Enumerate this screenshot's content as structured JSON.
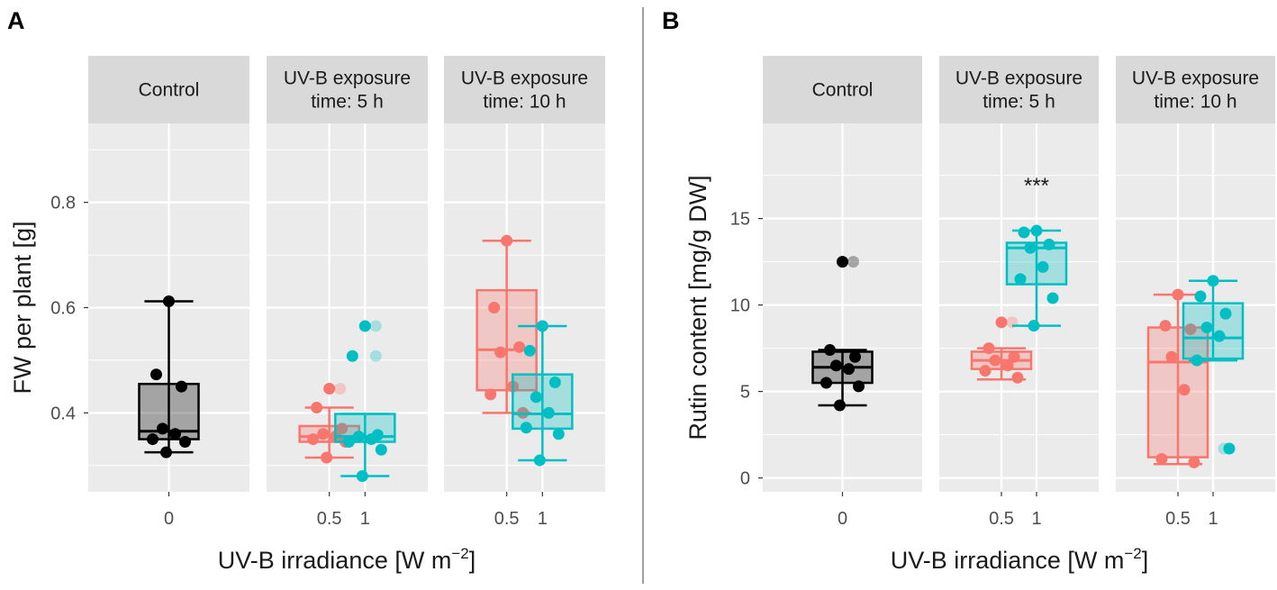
{
  "colors": {
    "control": "#000000",
    "low": "#f8766d",
    "high": "#00bfc4",
    "panel_bg": "#ebebeb",
    "strip_bg": "#d9d9d9",
    "grid": "#ffffff",
    "divider": "#7f7f7f"
  },
  "chart_data": [
    {
      "type": "box",
      "panel_label": "A",
      "ylabel": "FW per plant [g]",
      "xlabel_main": "UV-B irradiance [W m",
      "xlabel_sup": "−2",
      "xlabel_end": "]",
      "ylim": [
        0.25,
        0.95
      ],
      "yticks": [
        0.4,
        0.6,
        0.8
      ],
      "ytick_labels": [
        "0.4",
        "0.6",
        "0.8"
      ],
      "facets": [
        {
          "strip": [
            "Control"
          ],
          "groups": [
            {
              "x_label": "0",
              "color": "control",
              "fill_opacity": 0.3,
              "box": {
                "min": 0.325,
                "q1": 0.35,
                "median": 0.365,
                "q3": 0.455,
                "max": 0.612
              },
              "points": [
                0.612,
                0.473,
                0.45,
                0.37,
                0.36,
                0.35,
                0.345,
                0.325
              ],
              "outliers": []
            }
          ]
        },
        {
          "strip": [
            "UV-B exposure",
            "time: 5 h"
          ],
          "groups": [
            {
              "x_label": "0.5",
              "color": "low",
              "fill_opacity": 0.3,
              "box": {
                "min": 0.315,
                "q1": 0.345,
                "median": 0.355,
                "q3": 0.375,
                "max": 0.41
              },
              "points": [
                0.446,
                0.41,
                0.37,
                0.36,
                0.355,
                0.35,
                0.345,
                0.315
              ],
              "outliers": [
                0.446
              ]
            },
            {
              "x_label": "1",
              "color": "high",
              "fill_opacity": 0.3,
              "box": {
                "min": 0.28,
                "q1": 0.345,
                "median": 0.355,
                "q3": 0.398,
                "max": 0.398
              },
              "points": [
                0.565,
                0.508,
                0.358,
                0.355,
                0.35,
                0.345,
                0.33,
                0.28
              ],
              "outliers": [
                0.565,
                0.508
              ]
            }
          ]
        },
        {
          "strip": [
            "UV-B exposure",
            "time: 10 h"
          ],
          "groups": [
            {
              "x_label": "0.5",
              "color": "low",
              "fill_opacity": 0.3,
              "box": {
                "min": 0.4,
                "q1": 0.443,
                "median": 0.52,
                "q3": 0.633,
                "max": 0.727
              },
              "points": [
                0.727,
                0.6,
                0.525,
                0.515,
                0.45,
                0.435,
                0.4
              ],
              "outliers": []
            },
            {
              "x_label": "1",
              "color": "high",
              "fill_opacity": 0.3,
              "box": {
                "min": 0.31,
                "q1": 0.37,
                "median": 0.398,
                "q3": 0.473,
                "max": 0.565
              },
              "points": [
                0.565,
                0.518,
                0.458,
                0.43,
                0.4,
                0.372,
                0.36,
                0.31
              ],
              "outliers": []
            }
          ]
        }
      ]
    },
    {
      "type": "box",
      "panel_label": "B",
      "ylabel": "Rutin content [mg/g DW]",
      "xlabel_main": "UV-B irradiance [W m",
      "xlabel_sup": "−2",
      "xlabel_end": "]",
      "ylim": [
        -0.8,
        20.5
      ],
      "yticks": [
        0,
        5,
        10,
        15
      ],
      "ytick_labels": [
        "0",
        "5",
        "10",
        "15"
      ],
      "facets": [
        {
          "strip": [
            "Control"
          ],
          "groups": [
            {
              "x_label": "0",
              "color": "control",
              "fill_opacity": 0.3,
              "box": {
                "min": 4.2,
                "q1": 5.5,
                "median": 6.4,
                "q3": 7.3,
                "max": 7.4
              },
              "points": [
                12.5,
                7.4,
                7.0,
                6.5,
                6.3,
                5.5,
                5.3,
                4.2
              ],
              "outliers": [
                12.5
              ],
              "annotation": ""
            }
          ]
        },
        {
          "strip": [
            "UV-B exposure",
            "time: 5 h"
          ],
          "groups": [
            {
              "x_label": "0.5",
              "color": "low",
              "fill_opacity": 0.3,
              "box": {
                "min": 5.7,
                "q1": 6.3,
                "median": 6.8,
                "q3": 7.3,
                "max": 7.5
              },
              "points": [
                9.0,
                7.5,
                7.0,
                6.8,
                6.5,
                6.2,
                5.8
              ],
              "outliers": [
                9.0
              ],
              "annotation": ""
            },
            {
              "x_label": "1",
              "color": "high",
              "fill_opacity": 0.3,
              "box": {
                "min": 8.8,
                "q1": 11.2,
                "median": 13.3,
                "q3": 13.6,
                "max": 14.3
              },
              "points": [
                14.3,
                14.2,
                13.5,
                13.3,
                12.2,
                11.5,
                10.4,
                8.8
              ],
              "outliers": [],
              "annotation": "***"
            }
          ]
        },
        {
          "strip": [
            "UV-B exposure",
            "time: 10 h"
          ],
          "groups": [
            {
              "x_label": "0.5",
              "color": "low",
              "fill_opacity": 0.3,
              "box": {
                "min": 0.8,
                "q1": 1.2,
                "median": 6.7,
                "q3": 8.7,
                "max": 10.6
              },
              "points": [
                10.6,
                8.8,
                8.6,
                7.0,
                5.1,
                1.1,
                0.9
              ],
              "outliers": [],
              "annotation": ""
            },
            {
              "x_label": "1",
              "color": "high",
              "fill_opacity": 0.3,
              "box": {
                "min": 6.8,
                "q1": 6.9,
                "median": 8.1,
                "q3": 10.1,
                "max": 11.4
              },
              "points": [
                11.4,
                10.5,
                9.5,
                8.7,
                8.2,
                6.8,
                1.7
              ],
              "outliers": [
                1.7
              ],
              "annotation": ""
            }
          ]
        }
      ]
    }
  ]
}
